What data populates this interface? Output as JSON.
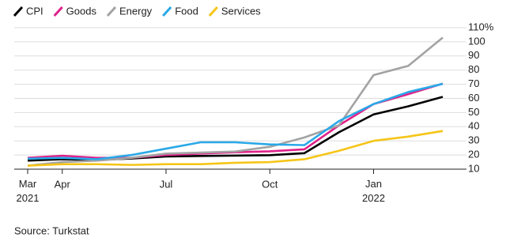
{
  "chart_data": {
    "type": "line",
    "categories": [
      "Mar 2021",
      "Apr",
      null,
      null,
      "Jul",
      null,
      null,
      "Oct",
      null,
      null,
      "Jan 2022",
      null,
      null
    ],
    "series": [
      {
        "name": "CPI",
        "color": "#000000",
        "values": [
          16,
          17,
          16.6,
          17.5,
          19,
          19.3,
          19.6,
          19.9,
          21.3,
          36.1,
          48.7,
          54.4,
          61.1
        ]
      },
      {
        "name": "Goods",
        "color": "#e0218a",
        "values": [
          18,
          19.5,
          18,
          18,
          20,
          21,
          22,
          22.6,
          24,
          41,
          56,
          63,
          70.5
        ]
      },
      {
        "name": "Energy",
        "color": "#a3a3a3",
        "values": [
          12.5,
          15,
          16,
          18,
          21,
          21.7,
          22.5,
          25.8,
          32.4,
          41,
          76.5,
          83,
          103
        ]
      },
      {
        "name": "Food",
        "color": "#2aa8e8",
        "values": [
          17.4,
          18,
          17,
          20,
          24.5,
          29,
          29,
          27.5,
          27,
          44,
          56,
          64.5,
          70.3
        ]
      },
      {
        "name": "Services",
        "color": "#f5c518",
        "values": [
          12.5,
          13.5,
          13.5,
          13,
          13.5,
          13.5,
          14.5,
          15,
          17,
          23,
          30,
          33,
          37
        ]
      }
    ],
    "ylim": [
      10,
      110
    ],
    "yticks": [
      10,
      20,
      30,
      40,
      50,
      60,
      70,
      80,
      90,
      100,
      {
        "value": 110,
        "label": "110%"
      }
    ],
    "grid": true,
    "legend": "top-left",
    "source": "Source: Turkstat"
  }
}
